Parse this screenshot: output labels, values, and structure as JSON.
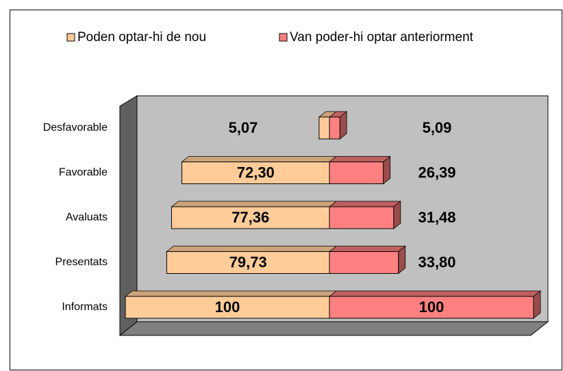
{
  "chart_data": {
    "type": "butterfly-bar",
    "categories": [
      "Informats",
      "Presentats",
      "Avaluats",
      "Favorable",
      "Desfavorable"
    ],
    "series": [
      {
        "name": "Poden optar-hi de nou",
        "color": "#FFCC99",
        "values": [
          100,
          79.73,
          77.36,
          72.3,
          5.07
        ],
        "value_labels": [
          "100",
          "79,73",
          "77,36",
          "72,30",
          "5,07"
        ]
      },
      {
        "name": "Van poder-hi optar anteriorment",
        "color": "#FF8080",
        "values": [
          100,
          33.8,
          31.48,
          26.39,
          5.09
        ],
        "value_labels": [
          "100",
          "33,80",
          "31,48",
          "26,39",
          "5,09"
        ]
      }
    ],
    "legend": "top"
  }
}
